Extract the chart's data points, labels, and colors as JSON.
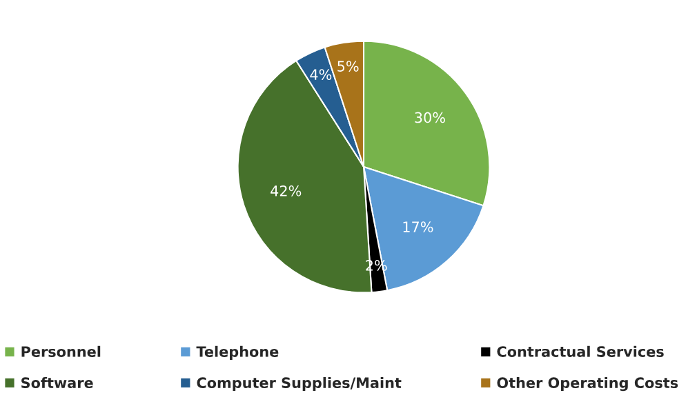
{
  "chart_data": {
    "type": "pie",
    "categories": [
      "Personnel",
      "Telephone",
      "Contractual Services",
      "Software",
      "Computer Supplies/Maint",
      "Other Operating Costs"
    ],
    "values": [
      30,
      17,
      2,
      42,
      4,
      5
    ],
    "colors": [
      "#77b34b",
      "#5b9bd5",
      "#000000",
      "#46712b",
      "#255e91",
      "#a8731a"
    ],
    "value_labels": [
      "30%",
      "17%",
      "2%",
      "42%",
      "4%",
      "5%"
    ],
    "legend": "bottom"
  }
}
